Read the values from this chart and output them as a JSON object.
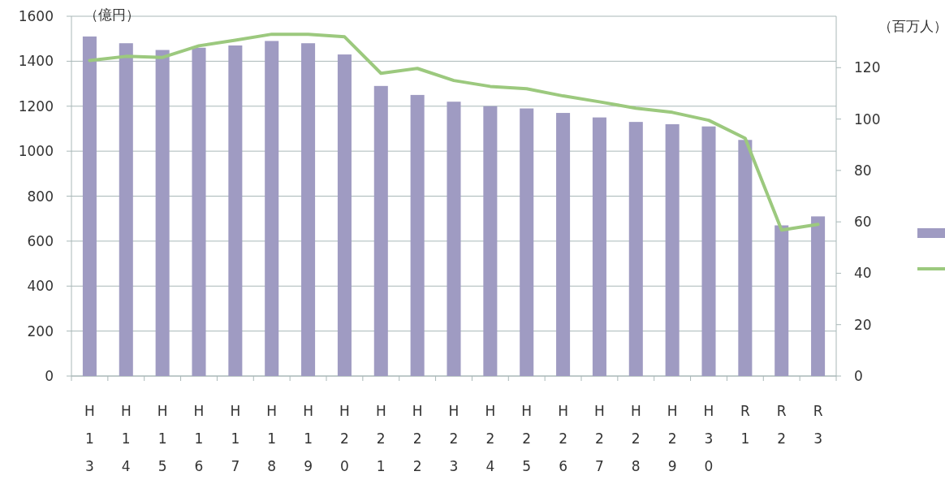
{
  "chart_data": {
    "type": "bar",
    "ylabel": "（億円）",
    "y2label": "（百万人）",
    "categories": [
      "H13",
      "H14",
      "H15",
      "H16",
      "H17",
      "H18",
      "H19",
      "H20",
      "H21",
      "H22",
      "H23",
      "H24",
      "H25",
      "H26",
      "H27",
      "H28",
      "H29",
      "H30",
      "R1",
      "R2",
      "R3"
    ],
    "series": [
      {
        "color": "#9f9bc2",
        "values": [
          1510,
          1480,
          1450,
          1460,
          1470,
          1490,
          1480,
          1430,
          1290,
          1250,
          1220,
          1200,
          1190,
          1170,
          1150,
          1130,
          1120,
          1110,
          1050,
          670,
          710
        ]
      },
      {
        "type": "line",
        "axis": "y2",
        "color": "#9cc97e",
        "values": [
          122.8,
          124.4,
          124,
          128.5,
          130.7,
          133,
          133,
          132,
          117.8,
          119.7,
          115,
          112.7,
          111.8,
          109,
          106.7,
          104.2,
          102.6,
          99.5,
          92.5,
          56.8,
          59
        ]
      }
    ],
    "ylim": [
      0,
      1600
    ],
    "yticks": [
      0,
      200,
      400,
      600,
      800,
      1000,
      1200,
      1400,
      1600
    ],
    "y2lim": [
      0,
      140
    ],
    "y2ticks": [
      0,
      20,
      40,
      60,
      80,
      100,
      120
    ],
    "grid": "y"
  }
}
